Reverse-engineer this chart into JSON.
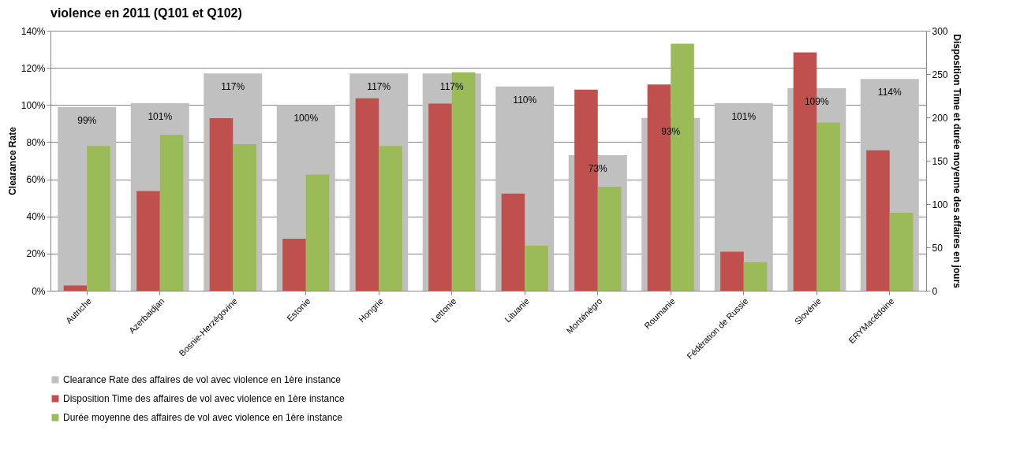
{
  "chart_data": {
    "type": "bar",
    "title": "violence en 2011 (Q101 et Q102)",
    "ylabel": "Clearance Rate",
    "y2label": "Disposition  Time et durée moyenne des affaires en jours",
    "categories": [
      "Autriche",
      "Azerbaidjan",
      "Bosnie-Herzégovine",
      "Estonie",
      "Hongrie",
      "Lettonie",
      "Lituanie",
      "Monténégro",
      "Roumanie",
      "Fédération de Russie",
      "Slovénie",
      "ERYMacédoine"
    ],
    "series": [
      {
        "name": "Clearance Rate des affaires de vol avec violence en 1ère instance",
        "color": "#c0c0c0",
        "values": [
          99,
          101,
          117,
          100,
          117,
          117,
          110,
          73,
          93,
          101,
          109,
          114
        ],
        "value_labels": [
          "99%",
          "101%",
          "117%",
          "100%",
          "117%",
          "117%",
          "110%",
          "73%",
          "93%",
          "101%",
          "109%",
          "114%"
        ]
      },
      {
        "name": "Disposition Time des affaires de vol avec violence en 1ère instance",
        "color": "#c0504d",
        "axis": "y2",
        "values": [
          6,
          115,
          199,
          60,
          222,
          216,
          112,
          232,
          238,
          45,
          275,
          162
        ]
      },
      {
        "name": "Durée moyenne des affaires de vol avec violence en 1ère instance",
        "color": "#9bbb59",
        "axis": "y2",
        "values": [
          167,
          180,
          169,
          134,
          167,
          252,
          52,
          120,
          285,
          33,
          194,
          90
        ]
      }
    ],
    "ylim": [
      0,
      140
    ],
    "yticks": [
      {
        "value": 0,
        "label": "0%"
      },
      {
        "value": 20,
        "label": "20%"
      },
      {
        "value": 40,
        "label": "40%"
      },
      {
        "value": 60,
        "label": "60%"
      },
      {
        "value": 80,
        "label": "80%"
      },
      {
        "value": 100,
        "label": "100%"
      },
      {
        "value": 120,
        "label": "120%"
      },
      {
        "value": 140,
        "label": "140%"
      }
    ],
    "y2lim": [
      0,
      300
    ],
    "y2ticks": [
      0,
      50,
      100,
      150,
      200,
      250,
      300
    ],
    "grid": "y",
    "legend": "bottom"
  }
}
